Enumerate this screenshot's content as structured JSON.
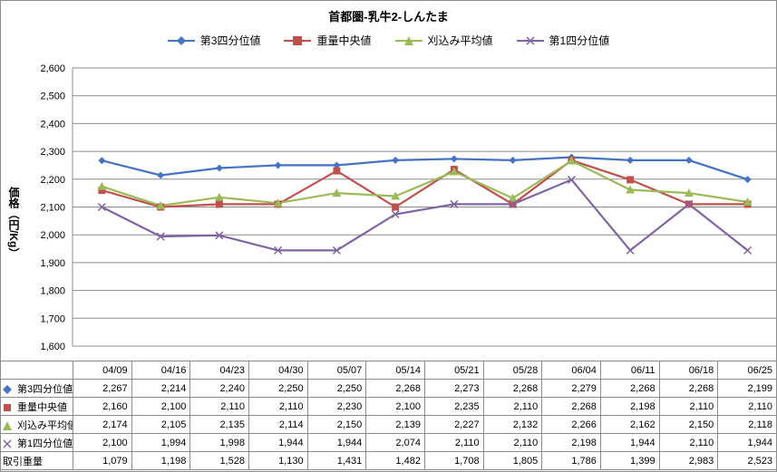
{
  "chart_data": {
    "type": "line",
    "title": "首都圏-乳牛2-しんたま",
    "ylabel": "価格（円/Kg）",
    "ylim": [
      1600,
      2600
    ],
    "yticks": [
      1600,
      1700,
      1800,
      1900,
      2000,
      2100,
      2200,
      2300,
      2400,
      2500,
      2600
    ],
    "ytick_labels": [
      "1,600",
      "1,700",
      "1,800",
      "1,900",
      "2,000",
      "2,100",
      "2,200",
      "2,300",
      "2,400",
      "2,500",
      "2,600"
    ],
    "grid": true,
    "legend": "top-center",
    "categories": [
      "04/09",
      "04/16",
      "04/23",
      "04/30",
      "05/07",
      "05/14",
      "05/21",
      "05/28",
      "06/04",
      "06/11",
      "06/18",
      "06/25"
    ],
    "series": [
      {
        "name": "第3四分位値",
        "color": "#4472c4",
        "marker": "diamond",
        "values": [
          2267,
          2214,
          2240,
          2250,
          2250,
          2268,
          2273,
          2268,
          2279,
          2268,
          2268,
          2199
        ],
        "labels": [
          "2,267",
          "2,214",
          "2,240",
          "2,250",
          "2,250",
          "2,268",
          "2,273",
          "2,268",
          "2,279",
          "2,268",
          "2,268",
          "2,199"
        ]
      },
      {
        "name": "重量中央値",
        "color": "#c0504d",
        "marker": "square",
        "values": [
          2160,
          2100,
          2110,
          2110,
          2230,
          2100,
          2235,
          2110,
          2268,
          2198,
          2110,
          2110
        ],
        "labels": [
          "2,160",
          "2,100",
          "2,110",
          "2,110",
          "2,230",
          "2,100",
          "2,235",
          "2,110",
          "2,268",
          "2,198",
          "2,110",
          "2,110"
        ]
      },
      {
        "name": "刈込み平均値",
        "color": "#9bbb59",
        "marker": "triangle",
        "values": [
          2174,
          2105,
          2135,
          2114,
          2150,
          2139,
          2227,
          2132,
          2266,
          2162,
          2150,
          2118
        ],
        "labels": [
          "2,174",
          "2,105",
          "2,135",
          "2,114",
          "2,150",
          "2,139",
          "2,227",
          "2,132",
          "2,266",
          "2,162",
          "2,150",
          "2,118"
        ]
      },
      {
        "name": "第1四分位値",
        "color": "#8064a2",
        "marker": "x",
        "values": [
          2100,
          1994,
          1998,
          1944,
          1944,
          2074,
          2110,
          2110,
          2198,
          1944,
          2110,
          1944
        ],
        "labels": [
          "2,100",
          "1,994",
          "1,998",
          "1,944",
          "1,944",
          "2,074",
          "2,110",
          "2,110",
          "2,198",
          "1,944",
          "2,110",
          "1,944"
        ]
      }
    ],
    "extra_row": {
      "name": "取引重量",
      "labels": [
        "1,079",
        "1,198",
        "1,528",
        "1,130",
        "1,431",
        "1,482",
        "1,708",
        "1,805",
        "1,786",
        "1,399",
        "2,983",
        "2,523"
      ]
    }
  }
}
